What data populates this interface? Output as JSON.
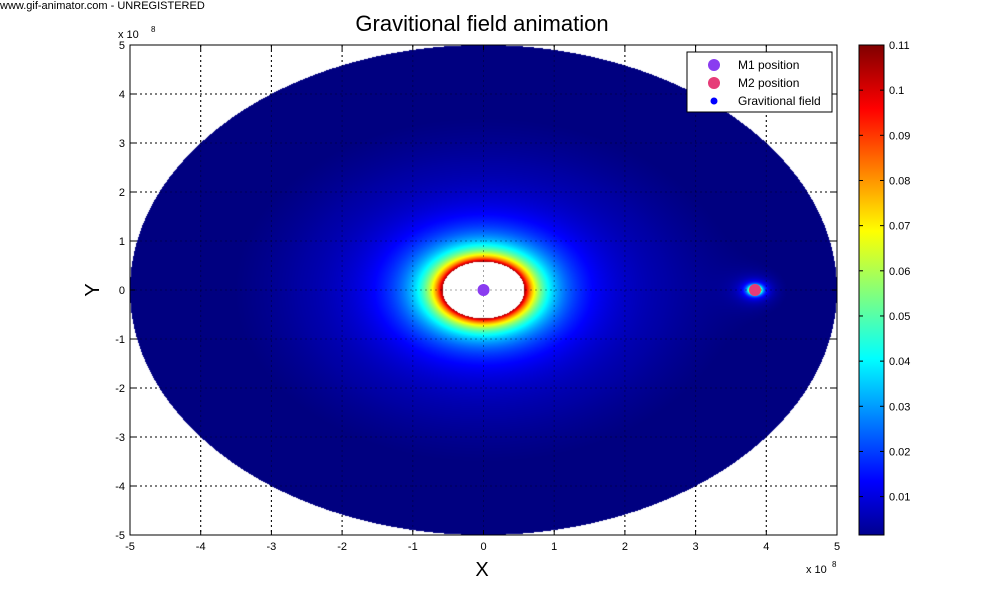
{
  "watermark": "www.gif-animator.com - UNREGISTERED",
  "chart_data": {
    "type": "heatmap",
    "title": "Gravitional field animation",
    "xlabel": "X",
    "ylabel": "Y",
    "x_exponent": "x 10",
    "y_exponent": "x 10",
    "exponent_power": "8",
    "xlim": [
      -5,
      5
    ],
    "ylim": [
      -5,
      5
    ],
    "x_ticks": [
      -5,
      -4,
      -3,
      -2,
      -1,
      0,
      1,
      2,
      3,
      4,
      5
    ],
    "y_ticks": [
      -5,
      -4,
      -3,
      -2,
      -1,
      0,
      1,
      2,
      3,
      4,
      5
    ],
    "grid": true,
    "grid_style": "dotted",
    "legend": {
      "placement": "top-right",
      "entries": [
        {
          "label": "M1 position",
          "color": "#8a3cf0",
          "marker": "circle"
        },
        {
          "label": "M2 position",
          "color": "#e63c78",
          "marker": "circle"
        },
        {
          "label": "Gravitional field",
          "color": "#0000ff",
          "marker": "dot"
        }
      ]
    },
    "masses": [
      {
        "name": "M1 position",
        "x": 0,
        "y": 0,
        "color": "#8a3cf0"
      },
      {
        "name": "M2 position",
        "x": 3.84,
        "y": 0,
        "color": "#e63c78"
      }
    ],
    "field_domain_radius": 5,
    "colorbar": {
      "min": 0.0015,
      "max": 0.11,
      "ticks": [
        0.01,
        0.02,
        0.03,
        0.04,
        0.05,
        0.06,
        0.07,
        0.08,
        0.09,
        0.1,
        0.11
      ],
      "colormap": "jet"
    }
  }
}
